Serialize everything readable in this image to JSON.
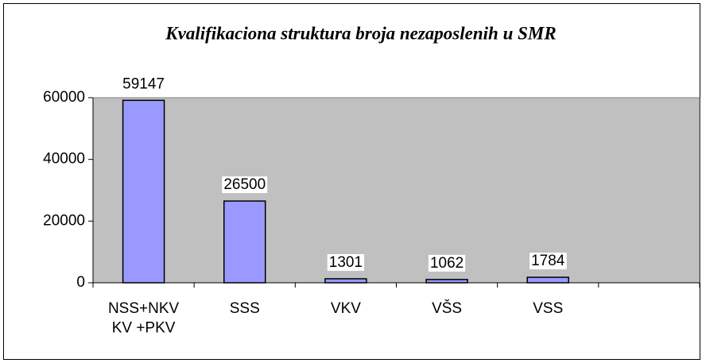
{
  "chart_data": {
    "type": "bar",
    "title": "Kvalifikaciona struktura broja nezaposlenih u SMR",
    "categories": [
      "NSS+NKV\nKV +PKV",
      "SSS",
      "VKV",
      "VŠS",
      "VSS",
      null
    ],
    "values": [
      59147,
      26500,
      1301,
      1062,
      1784,
      null
    ],
    "color": "#9999ff",
    "plot_background": "#c0c0c0",
    "ylim": [
      0,
      60000
    ],
    "yticks": [
      0,
      20000,
      40000,
      60000
    ],
    "grid": false
  }
}
